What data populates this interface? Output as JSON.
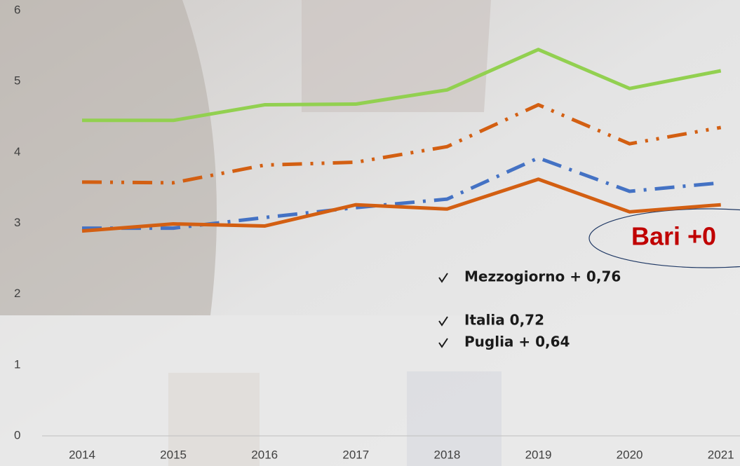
{
  "chart_data": {
    "type": "line",
    "categories": [
      "2014",
      "2015",
      "2016",
      "2017",
      "2018",
      "2019",
      "2020",
      "2021"
    ],
    "series": [
      {
        "color": "#92d050",
        "dash": "solid",
        "values": [
          4.45,
          4.45,
          4.67,
          4.68,
          4.88,
          5.45,
          4.9,
          5.15
        ]
      },
      {
        "color": "#d35f12",
        "dash": "dash-dot-dot",
        "values": [
          3.58,
          3.57,
          3.82,
          3.86,
          4.08,
          4.67,
          4.12,
          4.35
        ]
      },
      {
        "color": "#4472c4",
        "dash": "dash-dot",
        "values": [
          2.93,
          2.93,
          3.08,
          3.22,
          3.34,
          3.92,
          3.45,
          3.57
        ]
      },
      {
        "color": "#d35f12",
        "dash": "solid",
        "values": [
          2.89,
          2.99,
          2.96,
          3.26,
          3.2,
          3.62,
          3.16,
          3.26
        ]
      }
    ],
    "ylim": [
      0,
      6
    ],
    "yticks": [
      0,
      1,
      2,
      3,
      4,
      5,
      6
    ],
    "grid": false,
    "annotations": [
      "Bari +0",
      "Mezzogiorno + 0,76",
      "Italia 0,72",
      "Puglia + 0,64"
    ]
  }
}
